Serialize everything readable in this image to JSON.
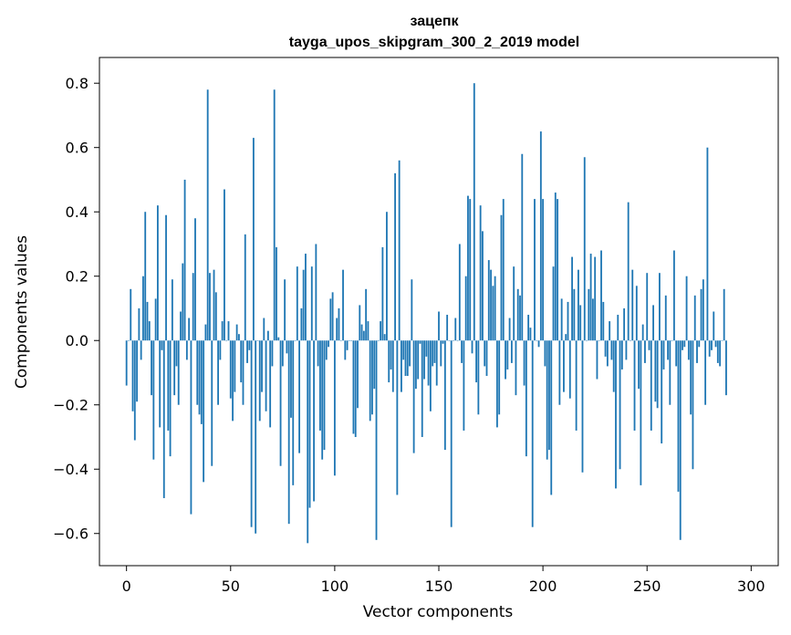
{
  "chart_data": {
    "type": "bar",
    "title": "зацепк",
    "subtitle": "tayga_upos_skipgram_300_2_2019 model",
    "xlabel": "Vector components",
    "ylabel": "Components values",
    "xlim": [
      -13,
      313
    ],
    "ylim": [
      -0.7,
      0.88
    ],
    "x_ticks": [
      0,
      50,
      100,
      150,
      200,
      250,
      300
    ],
    "y_ticks": [
      -0.6,
      -0.4,
      -0.2,
      0.0,
      0.2,
      0.4,
      0.6,
      0.8
    ],
    "x_tick_labels": [
      "0",
      "50",
      "100",
      "150",
      "200",
      "250",
      "300"
    ],
    "y_tick_labels": [
      "−0.6",
      "−0.4",
      "−0.2",
      "0.0",
      "0.2",
      "0.4",
      "0.6",
      "0.8"
    ],
    "bar_color": "#1f77b4",
    "grid": false,
    "values": [
      -0.14,
      0.0,
      0.16,
      -0.22,
      -0.31,
      -0.19,
      0.1,
      -0.06,
      0.2,
      0.4,
      0.12,
      0.06,
      -0.17,
      -0.37,
      0.13,
      0.42,
      -0.27,
      -0.03,
      -0.49,
      0.39,
      -0.28,
      -0.36,
      0.19,
      -0.17,
      -0.08,
      -0.2,
      0.09,
      0.24,
      0.5,
      -0.06,
      0.07,
      -0.54,
      0.21,
      0.38,
      -0.2,
      -0.23,
      -0.26,
      -0.44,
      0.05,
      0.78,
      0.21,
      -0.39,
      0.22,
      0.15,
      -0.2,
      -0.06,
      0.06,
      0.47,
      0.0,
      0.06,
      -0.18,
      -0.25,
      -0.16,
      0.05,
      0.02,
      -0.13,
      -0.2,
      0.33,
      -0.07,
      -0.03,
      -0.58,
      0.63,
      -0.6,
      0.0,
      -0.25,
      -0.16,
      0.07,
      -0.22,
      0.03,
      -0.27,
      -0.08,
      0.78,
      0.29,
      0.01,
      -0.39,
      -0.08,
      0.19,
      -0.04,
      -0.57,
      -0.24,
      -0.45,
      0.0,
      0.23,
      -0.35,
      0.1,
      0.22,
      0.27,
      -0.63,
      -0.52,
      0.23,
      -0.5,
      0.3,
      -0.08,
      -0.28,
      -0.37,
      -0.34,
      -0.06,
      -0.02,
      0.13,
      0.15,
      -0.42,
      0.07,
      0.1,
      0.0,
      0.22,
      -0.06,
      -0.03,
      0.0,
      0.0,
      -0.29,
      -0.3,
      -0.21,
      0.11,
      0.05,
      0.03,
      0.16,
      0.06,
      -0.25,
      -0.23,
      -0.15,
      -0.62,
      0.0,
      0.06,
      0.29,
      0.02,
      0.4,
      -0.13,
      -0.09,
      -0.16,
      0.52,
      -0.48,
      0.56,
      -0.16,
      -0.06,
      -0.11,
      -0.11,
      -0.08,
      0.19,
      -0.35,
      -0.15,
      -0.12,
      -0.01,
      -0.3,
      -0.12,
      -0.05,
      -0.14,
      -0.22,
      -0.08,
      -0.07,
      -0.14,
      0.09,
      -0.08,
      -0.01,
      -0.34,
      0.08,
      0.0,
      -0.58,
      0.0,
      0.07,
      0.0,
      0.3,
      -0.07,
      -0.28,
      0.2,
      0.45,
      0.44,
      -0.04,
      0.8,
      -0.13,
      -0.23,
      0.42,
      0.34,
      -0.08,
      -0.11,
      0.25,
      0.22,
      0.17,
      0.2,
      -0.27,
      -0.23,
      0.39,
      0.44,
      -0.12,
      -0.09,
      0.07,
      -0.07,
      0.23,
      -0.17,
      0.16,
      0.14,
      0.58,
      -0.14,
      -0.36,
      0.08,
      0.04,
      -0.58,
      0.44,
      0.0,
      -0.02,
      0.65,
      0.44,
      -0.08,
      -0.37,
      -0.34,
      -0.48,
      0.23,
      0.46,
      0.44,
      -0.2,
      0.13,
      -0.16,
      0.02,
      0.12,
      -0.18,
      0.26,
      0.16,
      -0.28,
      0.22,
      0.11,
      -0.41,
      0.57,
      0.0,
      0.16,
      0.27,
      0.13,
      0.26,
      -0.12,
      0.0,
      0.28,
      0.12,
      -0.05,
      -0.08,
      0.06,
      -0.06,
      -0.16,
      -0.46,
      0.08,
      -0.4,
      -0.09,
      0.1,
      -0.06,
      0.43,
      0.0,
      0.22,
      -0.28,
      0.17,
      -0.15,
      -0.45,
      0.05,
      -0.07,
      0.21,
      -0.03,
      -0.28,
      0.11,
      -0.19,
      -0.21,
      0.21,
      -0.32,
      -0.09,
      0.14,
      -0.06,
      -0.2,
      0.0,
      0.28,
      -0.08,
      -0.47,
      -0.62,
      -0.03,
      -0.02,
      0.2,
      -0.06,
      -0.23,
      -0.4,
      0.14,
      -0.07,
      -0.02,
      0.16,
      0.19,
      -0.2,
      0.6,
      -0.05,
      -0.03,
      0.09,
      -0.02,
      -0.07,
      -0.08,
      0.0,
      0.16,
      -0.17
    ]
  }
}
